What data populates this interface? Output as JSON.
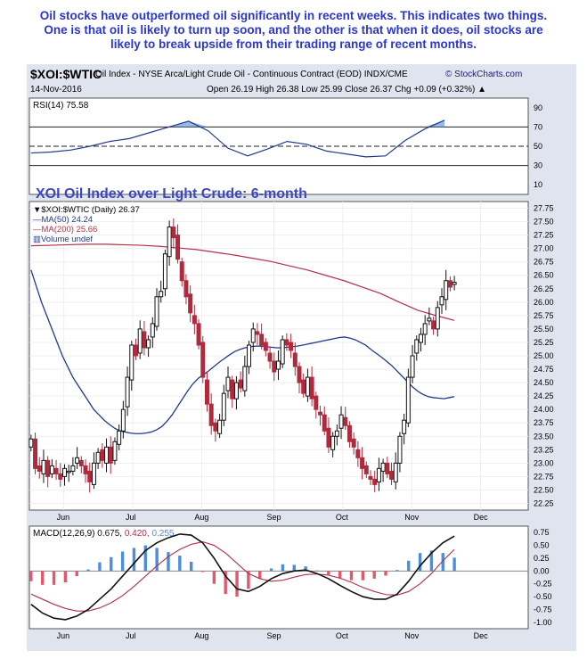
{
  "commentary": {
    "line1": "Oil stocks have outperformed oil significantly in recent weeks. This indicates two things.",
    "line2": "One is that oil is likely to turn up soon, and the other is that when it does, oil stocks are",
    "line3": "likely to break upside from their trading range of recent months."
  },
  "header": {
    "symbol": "$XOI:$WTIC",
    "description": "Oil Index - NYSE Arca/Light Crude Oil - Continuous Contract (EOD) INDX/CME",
    "brand": "© StockCharts.com",
    "date": "14-Nov-2016",
    "ohlc": "Open 26.19  High 26.38  Low 25.99  Close 26.37  Chg +0.09 (+0.32%) ▲"
  },
  "colors": {
    "up_candle": "#111111",
    "down_candle": "#b02a3e",
    "ma50": "#233a8c",
    "ma200": "#b43048",
    "macd_hist_pos": "#4e8ed8",
    "macd_hist_neg": "#e05a6e",
    "title_blue": "#3d47c0"
  },
  "chart_data": [
    {
      "type": "line",
      "panel": "rsi",
      "label": "RSI(14) 75.58",
      "yticks": [
        10,
        30,
        50,
        70,
        90
      ],
      "reference_lines": [
        30,
        50,
        70
      ],
      "ylim": [
        0,
        100
      ],
      "x": [
        0,
        6,
        12,
        18,
        24,
        30,
        36,
        42,
        48,
        54,
        60,
        66,
        72,
        78,
        84,
        90,
        96,
        102,
        108,
        114,
        120,
        126
      ],
      "values": [
        43,
        44,
        46,
        50,
        55,
        58,
        64,
        70,
        76,
        66,
        48,
        40,
        47,
        55,
        52,
        45,
        42,
        39,
        40,
        56,
        68,
        77
      ]
    },
    {
      "type": "candlestick",
      "panel": "price",
      "title": "XOI Oil Index over Light Crude: 6-month",
      "legend": {
        "price": "$XOI:$WTIC (Daily) 26.37",
        "ma50": "MA(50) 24.24",
        "ma200": "MA(200) 25.66",
        "volume": "Volume undef"
      },
      "yticks": [
        22.25,
        22.5,
        22.75,
        23.0,
        23.25,
        23.5,
        23.75,
        24.0,
        24.25,
        24.5,
        24.75,
        25.0,
        25.25,
        25.5,
        25.75,
        26.0,
        26.25,
        26.5,
        26.75,
        27.0,
        27.25,
        27.5,
        27.75
      ],
      "ytick_labels": [
        "22.25",
        "22.50",
        "22.75",
        "23.00",
        "23.25",
        "23.50",
        "23.75",
        "24.00",
        "24.25",
        "24.50",
        "24.75",
        "25.00",
        "25.25",
        "25.50",
        "25.75",
        "26.00",
        "26.25",
        "26.50",
        "26.75",
        "27.00",
        "27.25",
        "27.50",
        "27.75"
      ],
      "months": [
        "Jun",
        "Jul",
        "Aug",
        "Sep",
        "Oct",
        "Nov",
        "Dec"
      ],
      "month_index": [
        10,
        31,
        52,
        74,
        95,
        116,
        137
      ],
      "closes": [
        23.45,
        22.9,
        22.85,
        23.05,
        22.75,
        22.95,
        22.8,
        22.7,
        22.9,
        22.85,
        22.95,
        23.1,
        22.95,
        22.8,
        22.65,
        23.0,
        23.2,
        23.05,
        23.3,
        23.0,
        23.4,
        23.6,
        24.0,
        24.6,
        25.2,
        25.0,
        25.5,
        25.15,
        25.3,
        25.6,
        26.1,
        26.2,
        26.9,
        27.4,
        27.2,
        26.8,
        26.4,
        26.1,
        25.8,
        25.6,
        25.2,
        24.6,
        24.1,
        23.7,
        23.6,
        23.8,
        24.3,
        24.6,
        24.2,
        24.5,
        24.4,
        24.8,
        25.2,
        25.5,
        25.4,
        25.2,
        25.1,
        24.9,
        24.7,
        24.9,
        25.3,
        25.2,
        25.1,
        24.8,
        24.5,
        24.3,
        24.6,
        24.2,
        24.0,
        23.9,
        23.6,
        23.3,
        23.5,
        23.6,
        23.9,
        23.7,
        23.4,
        23.3,
        23.1,
        22.9,
        22.8,
        22.7,
        22.6,
        22.9,
        23.0,
        22.8,
        22.7,
        23.0,
        23.5,
        23.8,
        24.6,
        25.0,
        25.3,
        25.4,
        25.6,
        25.7,
        25.5,
        25.9,
        26.1,
        26.4,
        26.28,
        26.37
      ],
      "ma50": [
        26.6,
        26.3,
        26.0,
        25.75,
        25.5,
        25.25,
        25.0,
        24.8,
        24.6,
        24.45,
        24.3,
        24.15,
        24.0,
        23.9,
        23.8,
        23.72,
        23.65,
        23.6,
        23.58,
        23.56,
        23.55,
        23.55,
        23.56,
        23.58,
        23.62,
        23.68,
        23.78,
        23.9,
        24.05,
        24.2,
        24.35,
        24.48,
        24.58,
        24.65,
        24.72,
        24.8,
        24.88,
        24.95,
        25.02,
        25.08,
        25.12,
        25.15,
        25.17,
        25.18,
        25.18,
        25.17,
        25.16,
        25.15,
        25.15,
        25.16,
        25.17,
        25.18,
        25.2,
        25.22,
        25.24,
        25.26,
        25.28,
        25.3,
        25.32,
        25.34,
        25.35,
        25.33,
        25.3,
        25.25,
        25.2,
        25.12,
        25.05,
        24.98,
        24.9,
        24.82,
        24.72,
        24.62,
        24.52,
        24.42,
        24.34,
        24.28,
        24.24,
        24.22,
        24.21,
        24.2,
        24.22,
        24.24
      ],
      "ma200": [
        27.05,
        27.06,
        27.07,
        27.08,
        27.08,
        27.07,
        27.06,
        27.04,
        27.01,
        26.98,
        26.93,
        26.88,
        26.82,
        26.76,
        26.68,
        26.6,
        26.5,
        26.4,
        26.28,
        26.16,
        26.0,
        25.85,
        25.75,
        25.66
      ]
    },
    {
      "type": "line",
      "panel": "macd",
      "label_prefix": "MACD(12,26,9)",
      "label_values": [
        "0.675",
        "0.420",
        "0.255"
      ],
      "yticks": [
        0.75,
        0.5,
        0.25,
        0.0,
        -0.25,
        -0.5,
        -0.75,
        -1.0
      ],
      "ytick_labels": [
        "0.75",
        "0.50",
        "0.25",
        "0.00",
        "-0.25",
        "-0.50",
        "-0.75",
        "-1.00"
      ],
      "series": [
        {
          "name": "MACD",
          "values": [
            -0.65,
            -0.82,
            -0.92,
            -0.95,
            -0.88,
            -0.75,
            -0.55,
            -0.35,
            -0.1,
            0.15,
            0.4,
            0.55,
            0.65,
            0.72,
            0.7,
            0.55,
            0.25,
            -0.1,
            -0.35,
            -0.4,
            -0.3,
            -0.15,
            -0.05,
            0.0,
            0.02,
            -0.05,
            -0.15,
            -0.28,
            -0.4,
            -0.5,
            -0.55,
            -0.55,
            -0.45,
            -0.2,
            0.1,
            0.35,
            0.55,
            0.68
          ]
        },
        {
          "name": "Signal",
          "values": [
            -0.45,
            -0.55,
            -0.65,
            -0.73,
            -0.78,
            -0.78,
            -0.72,
            -0.62,
            -0.48,
            -0.3,
            -0.1,
            0.1,
            0.28,
            0.42,
            0.52,
            0.57,
            0.5,
            0.35,
            0.15,
            -0.05,
            -0.15,
            -0.2,
            -0.18,
            -0.12,
            -0.07,
            -0.06,
            -0.08,
            -0.14,
            -0.22,
            -0.32,
            -0.4,
            -0.46,
            -0.47,
            -0.4,
            -0.25,
            -0.05,
            0.2,
            0.42
          ]
        },
        {
          "name": "Histogram",
          "values": [
            -0.2,
            -0.27,
            -0.27,
            -0.22,
            -0.1,
            0.03,
            0.17,
            0.27,
            0.38,
            0.45,
            0.5,
            0.45,
            0.37,
            0.3,
            0.18,
            -0.02,
            -0.25,
            -0.45,
            -0.5,
            -0.35,
            -0.15,
            0.05,
            0.13,
            0.12,
            0.09,
            0.01,
            -0.07,
            -0.14,
            -0.18,
            -0.18,
            -0.15,
            -0.09,
            0.02,
            0.2,
            0.35,
            0.4,
            0.35,
            0.26
          ]
        }
      ],
      "months": [
        "Jun",
        "Jul",
        "Aug",
        "Sep",
        "Oct",
        "Nov",
        "Dec"
      ]
    }
  ]
}
